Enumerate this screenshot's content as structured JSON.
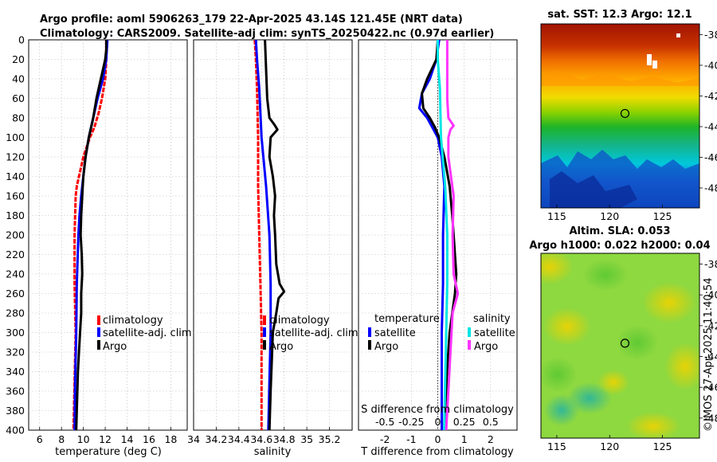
{
  "header": {
    "title_line1": "Argo profile: aoml 5906263_179 22-Apr-2025 43.14S 121.45E (NRT data)",
    "title_line2": "Climatology: CARS2009. Satellite-adj clim: synTS_20250422.nc (0.97d earlier)"
  },
  "sst_map": {
    "title": "sat. SST: 12.3 Argo: 12.1"
  },
  "sla_map": {
    "title_line1": "Altim. SLA: 0.053",
    "title_line2": "Argo h1000: 0.022 h2000: 0.04"
  },
  "credit": "©IMOS 27-Apr-2025 11:40:54",
  "colors": {
    "climatology": "#ff0000",
    "satellite": "#0000ff",
    "argo": "#000000",
    "salinity_satellite": "#00e5e5",
    "salinity_argo": "#ff33ff"
  },
  "legend": {
    "climatology": "climatology",
    "satellite_adj": "satellite-adj. clim",
    "argo": "Argo",
    "temperature": "temperature",
    "salinity": "salinity",
    "satellite": "satellite"
  },
  "chart_data": [
    {
      "id": "temperature",
      "type": "line",
      "xlabel": "temperature (deg C)",
      "ylabel": "",
      "xlim": [
        5,
        19.5
      ],
      "ylim": [
        400,
        0
      ],
      "xticks": [
        6,
        8,
        10,
        12,
        14,
        16,
        18
      ],
      "yticks": [
        0,
        20,
        40,
        60,
        80,
        100,
        120,
        140,
        160,
        180,
        200,
        220,
        240,
        260,
        280,
        300,
        320,
        340,
        360,
        380,
        400
      ],
      "grid": true,
      "legend_position": "bottom-right",
      "series": [
        {
          "name": "climatology",
          "depth": [
            0,
            20,
            40,
            60,
            75,
            90,
            100,
            110,
            120,
            130,
            140,
            150,
            160,
            180,
            200,
            250,
            300,
            350,
            400
          ],
          "values": [
            12.1,
            12.1,
            12.0,
            11.7,
            11.4,
            11.0,
            10.6,
            10.3,
            10.0,
            9.8,
            9.6,
            9.4,
            9.3,
            9.25,
            9.2,
            9.2,
            9.3,
            9.2,
            9.1
          ]
        },
        {
          "name": "satellite-adj. clim",
          "depth": [
            0,
            20,
            40,
            60,
            80,
            100,
            120,
            140,
            160,
            180,
            200,
            250,
            300,
            350,
            400
          ],
          "values": [
            12.2,
            12.1,
            11.8,
            11.3,
            10.9,
            10.5,
            10.2,
            10.0,
            9.8,
            9.65,
            9.55,
            9.4,
            9.35,
            9.25,
            9.2
          ]
        },
        {
          "name": "Argo",
          "depth": [
            0,
            10,
            20,
            40,
            60,
            80,
            100,
            120,
            140,
            160,
            180,
            200,
            220,
            240,
            260,
            280,
            300,
            320,
            340,
            360,
            380,
            400
          ],
          "values": [
            12.1,
            12.1,
            12.0,
            11.6,
            11.2,
            10.9,
            10.5,
            10.2,
            10.0,
            9.9,
            9.8,
            9.75,
            9.85,
            9.9,
            9.8,
            9.8,
            9.7,
            9.6,
            9.5,
            9.45,
            9.4,
            9.35
          ]
        }
      ]
    },
    {
      "id": "salinity",
      "type": "line",
      "xlabel": "salinity",
      "ylabel": "",
      "xlim": [
        34,
        35.4
      ],
      "ylim": [
        400,
        0
      ],
      "xticks": [
        34,
        34.2,
        34.4,
        34.6,
        34.8,
        35,
        35.2
      ],
      "grid": true,
      "legend_position": "bottom-right",
      "series": [
        {
          "name": "climatology",
          "depth": [
            0,
            20,
            50,
            100,
            150,
            200,
            250,
            300,
            350,
            400
          ],
          "values": [
            34.54,
            34.55,
            34.56,
            34.57,
            34.57,
            34.58,
            34.59,
            34.6,
            34.6,
            34.6
          ]
        },
        {
          "name": "satellite-adj. clim",
          "depth": [
            0,
            20,
            50,
            100,
            150,
            200,
            250,
            300,
            350,
            400
          ],
          "values": [
            34.55,
            34.56,
            34.58,
            34.6,
            34.64,
            34.67,
            34.68,
            34.68,
            34.67,
            34.66
          ]
        },
        {
          "name": "Argo",
          "depth": [
            0,
            30,
            60,
            80,
            88,
            92,
            96,
            100,
            120,
            140,
            160,
            180,
            200,
            230,
            250,
            258,
            265,
            280,
            300,
            330,
            360,
            400
          ],
          "values": [
            34.63,
            34.64,
            34.65,
            34.67,
            34.72,
            34.74,
            34.71,
            34.68,
            34.67,
            34.7,
            34.72,
            34.71,
            34.72,
            34.73,
            34.76,
            34.8,
            34.75,
            34.73,
            34.7,
            34.69,
            34.68,
            34.67
          ]
        }
      ]
    },
    {
      "id": "differences",
      "type": "line",
      "xlabel": "T difference from climatology",
      "top_label": "S difference from climatology",
      "xlim": [
        -3,
        3
      ],
      "ylim": [
        400,
        0
      ],
      "xticks": [
        -2,
        -1,
        0,
        1,
        2
      ],
      "top_ticks": [
        "-0.5",
        "-0.25",
        "0",
        "0.25",
        "0.5"
      ],
      "grid": true,
      "series": [
        {
          "name": "temperature satellite",
          "depth": [
            0,
            20,
            40,
            55,
            70,
            80,
            90,
            100,
            120,
            150,
            200,
            250,
            300,
            350,
            400
          ],
          "values": [
            0.05,
            -0.05,
            -0.3,
            -0.6,
            -0.7,
            -0.4,
            -0.2,
            0.0,
            0.15,
            0.25,
            0.2,
            0.2,
            0.15,
            0.15,
            0.15
          ]
        },
        {
          "name": "temperature Argo",
          "depth": [
            0,
            20,
            40,
            55,
            70,
            80,
            90,
            100,
            120,
            150,
            180,
            200,
            240,
            260,
            280,
            300,
            340,
            380,
            400
          ],
          "values": [
            0.0,
            -0.05,
            -0.4,
            -0.6,
            -0.55,
            -0.3,
            -0.1,
            0.05,
            0.25,
            0.45,
            0.55,
            0.6,
            0.7,
            0.65,
            0.55,
            0.45,
            0.35,
            0.3,
            0.3
          ]
        },
        {
          "name": "salinity satellite",
          "depth": [
            0,
            20,
            50,
            100,
            150,
            200,
            250,
            300,
            350,
            400
          ],
          "values": [
            0.0,
            0.0,
            0.02,
            0.03,
            0.07,
            0.09,
            0.09,
            0.08,
            0.07,
            0.06
          ]
        },
        {
          "name": "salinity Argo",
          "depth": [
            0,
            30,
            60,
            80,
            88,
            92,
            100,
            120,
            160,
            200,
            240,
            260,
            280,
            320,
            360,
            400
          ],
          "values": [
            0.09,
            0.09,
            0.09,
            0.1,
            0.15,
            0.12,
            0.1,
            0.1,
            0.15,
            0.14,
            0.15,
            0.19,
            0.14,
            0.12,
            0.1,
            0.08
          ]
        }
      ]
    }
  ],
  "maps": {
    "lat_ticks": [
      "-38",
      "-40",
      "-42",
      "-44",
      "-46",
      "-48"
    ],
    "lon_ticks": [
      "115",
      "120",
      "125"
    ],
    "argo_marker": {
      "lon": 121.45,
      "lat": -43.14
    }
  }
}
